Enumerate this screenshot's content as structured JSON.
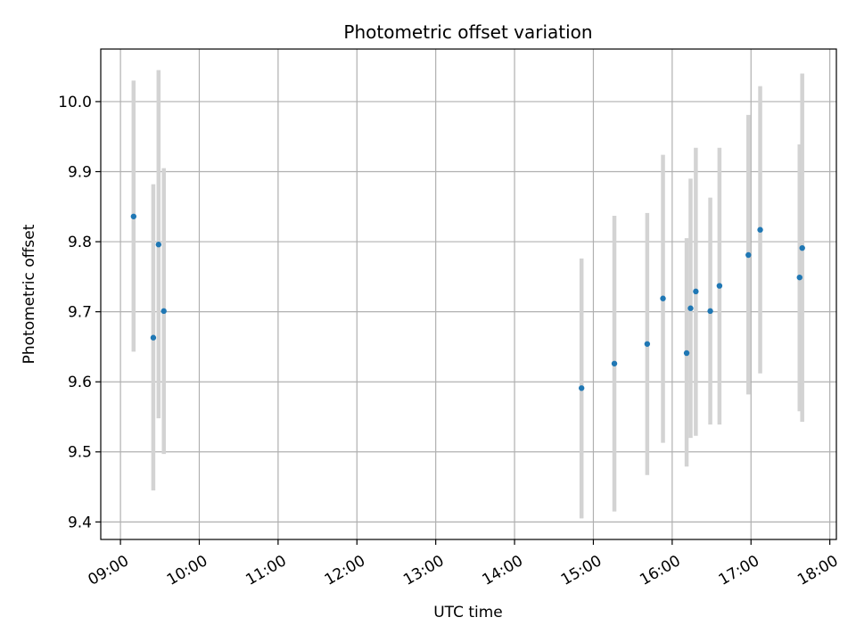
{
  "chart_data": {
    "type": "scatter",
    "title": "Photometric offset variation",
    "xlabel": "UTC time",
    "ylabel": "Photometric offset",
    "xlim": [
      "08:45",
      "18:05"
    ],
    "ylim": [
      9.375,
      10.075
    ],
    "x_ticks": [
      "09:00",
      "10:00",
      "11:00",
      "12:00",
      "13:00",
      "14:00",
      "15:00",
      "16:00",
      "17:00",
      "18:00"
    ],
    "y_ticks": [
      "9.4",
      "9.5",
      "9.6",
      "9.7",
      "9.8",
      "9.9",
      "10.0"
    ],
    "grid": true,
    "colors": {
      "point": "#1f77b4",
      "errorbar": "#d3d3d3",
      "grid": "#b0b0b0"
    },
    "points": [
      {
        "x": "09:10",
        "y": 9.836,
        "ylo": 9.643,
        "yhi": 10.03
      },
      {
        "x": "09:25",
        "y": 9.663,
        "ylo": 9.445,
        "yhi": 9.882
      },
      {
        "x": "09:29",
        "y": 9.796,
        "ylo": 9.548,
        "yhi": 10.045
      },
      {
        "x": "09:33",
        "y": 9.701,
        "ylo": 9.497,
        "yhi": 9.905
      },
      {
        "x": "14:51",
        "y": 9.591,
        "ylo": 9.405,
        "yhi": 9.776
      },
      {
        "x": "15:16",
        "y": 9.626,
        "ylo": 9.415,
        "yhi": 9.837
      },
      {
        "x": "15:41",
        "y": 9.654,
        "ylo": 9.467,
        "yhi": 9.841
      },
      {
        "x": "15:53",
        "y": 9.719,
        "ylo": 9.513,
        "yhi": 9.924
      },
      {
        "x": "16:11",
        "y": 9.641,
        "ylo": 9.479,
        "yhi": 9.805
      },
      {
        "x": "16:14",
        "y": 9.705,
        "ylo": 9.52,
        "yhi": 9.89
      },
      {
        "x": "16:18",
        "y": 9.729,
        "ylo": 9.523,
        "yhi": 9.934
      },
      {
        "x": "16:29",
        "y": 9.701,
        "ylo": 9.539,
        "yhi": 9.863
      },
      {
        "x": "16:36",
        "y": 9.737,
        "ylo": 9.539,
        "yhi": 9.934
      },
      {
        "x": "16:58",
        "y": 9.781,
        "ylo": 9.582,
        "yhi": 9.981
      },
      {
        "x": "17:07",
        "y": 9.817,
        "ylo": 9.612,
        "yhi": 10.022
      },
      {
        "x": "17:37",
        "y": 9.749,
        "ylo": 9.558,
        "yhi": 9.939
      },
      {
        "x": "17:39",
        "y": 9.791,
        "ylo": 9.543,
        "yhi": 10.04
      }
    ]
  }
}
